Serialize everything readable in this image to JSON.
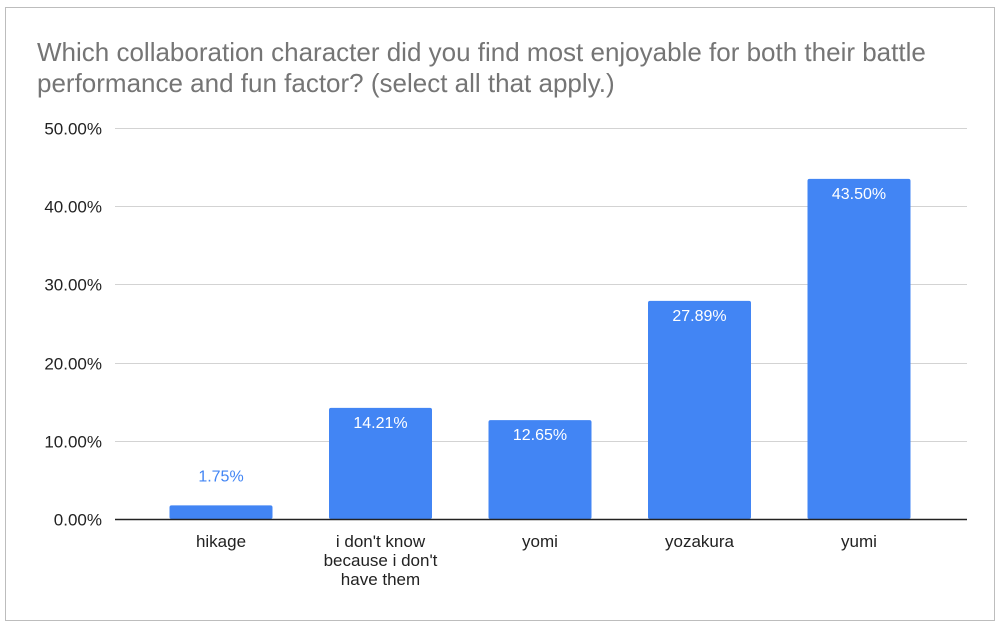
{
  "chart_data": {
    "type": "bar",
    "title": "Which collaboration character did you find most enjoyable for both their battle performance and fun factor? (select all that apply.)",
    "categories": [
      [
        "hikage"
      ],
      [
        "i don't know",
        "because i don't",
        "have them"
      ],
      [
        "yomi"
      ],
      [
        "yozakura"
      ],
      [
        "yumi"
      ]
    ],
    "values": [
      1.75,
      14.21,
      12.65,
      27.89,
      43.5
    ],
    "value_labels": [
      "1.75%",
      "14.21%",
      "12.65%",
      "27.89%",
      "43.50%"
    ],
    "ylim": [
      0,
      50
    ],
    "yticks": [
      0,
      10,
      20,
      30,
      40,
      50
    ],
    "ytick_labels": [
      "0.00%",
      "10.00%",
      "20.00%",
      "30.00%",
      "40.00%",
      "50.00%"
    ],
    "xlabel": "",
    "ylabel": "",
    "grid": true,
    "legend": "none",
    "colors": {
      "bar": "#4285f4",
      "label_inside": "#ffffff",
      "label_outside": "#4285f4",
      "grid": "#d3d3d3",
      "axis": "#222222",
      "title": "#757575"
    }
  }
}
